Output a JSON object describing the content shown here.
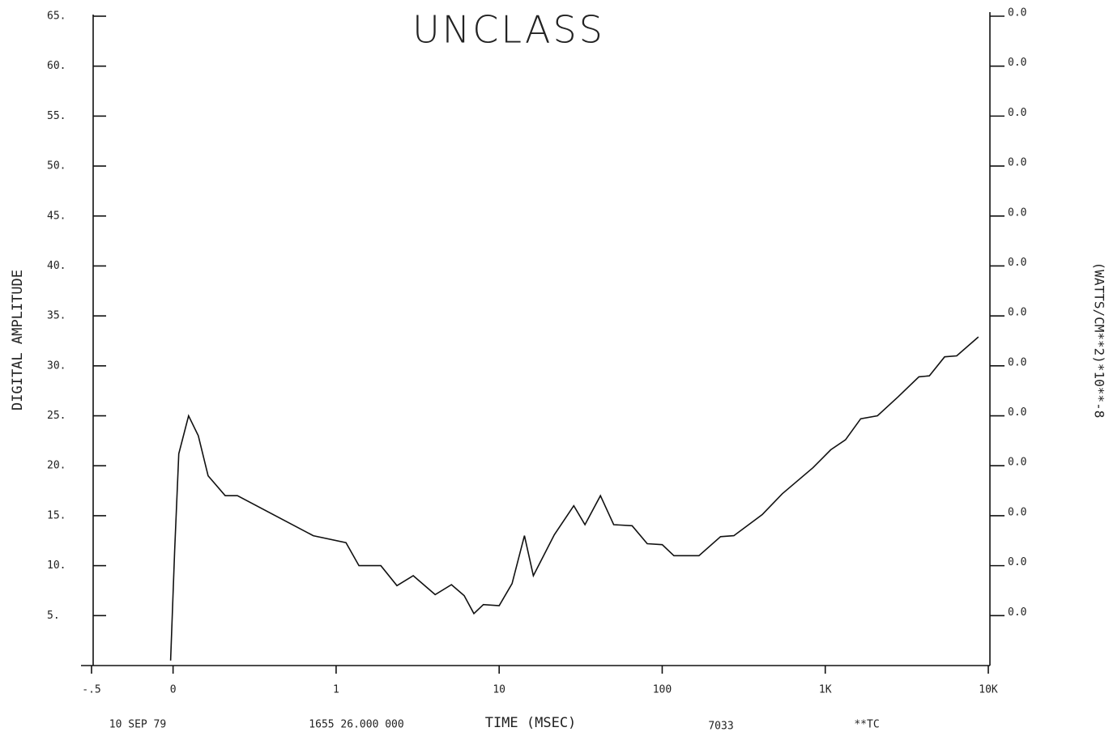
{
  "chart_data": {
    "type": "line",
    "title": "UNCLASS",
    "y_label": "DIGITAL AMPLITUDE",
    "y2_label": "(WATTS/CM**2)*10**-8",
    "x_label": "TIME (MSEC)",
    "footer": [
      "10 SEP 79",
      "1655 26.000 000",
      "7033",
      "**TC"
    ],
    "xscale": "symlog",
    "linthresh": 1,
    "xlim": [
      -0.5,
      10000
    ],
    "xticks": [
      {
        "value": -0.5,
        "label": "-.5"
      },
      0,
      1,
      10,
      100,
      {
        "value": 1000,
        "label": "1K"
      },
      {
        "value": 10000,
        "label": "10K"
      }
    ],
    "ylim": [
      0,
      65
    ],
    "yticks": [
      {
        "value": 5,
        "label": "5."
      },
      {
        "value": 10,
        "label": "10."
      },
      {
        "value": 15,
        "label": "15."
      },
      {
        "value": 20,
        "label": "20."
      },
      {
        "value": 25,
        "label": "25."
      },
      {
        "value": 30,
        "label": "30."
      },
      {
        "value": 35,
        "label": "35."
      },
      {
        "value": 40,
        "label": "40."
      },
      {
        "value": 45,
        "label": "45."
      },
      {
        "value": 50,
        "label": "50."
      },
      {
        "value": 55,
        "label": "55."
      },
      {
        "value": 60,
        "label": "60."
      },
      {
        "value": 65,
        "label": "65."
      }
    ],
    "y2tick_labels": [
      "0.0",
      "0.0",
      "0.0",
      "0.0",
      "0.0",
      "0.0",
      "0.0",
      "0.0",
      "0.0",
      "0.0",
      "0.0",
      "0.0",
      "0.0"
    ],
    "series": [
      {
        "color": "#111",
        "x": [
          -0.015,
          0.01,
          0.035,
          0.095,
          0.155,
          0.215,
          0.32,
          0.395,
          0.86,
          1.15,
          1.38,
          1.88,
          2.36,
          2.97,
          4.05,
          5.1,
          6.1,
          7,
          8,
          10,
          12,
          14.3,
          16.2,
          21.8,
          28.7,
          33.6,
          41.8,
          50.4,
          65.4,
          81,
          100,
          118,
          168,
          228,
          275,
          410,
          545,
          840,
          1080,
          1330,
          1650,
          2090,
          2800,
          3750,
          4350,
          5400,
          6400,
          8700
        ],
        "values": [
          0.5,
          11.5,
          21.2,
          25,
          23,
          19,
          17,
          17,
          13,
          12.3,
          10,
          10,
          8,
          9,
          7.1,
          8.1,
          7,
          5.2,
          6.1,
          6,
          8.2,
          13,
          9,
          13.1,
          16,
          14.1,
          17,
          14.1,
          14,
          12.2,
          12.1,
          11,
          11,
          12.9,
          13,
          15.1,
          17.2,
          19.8,
          21.6,
          22.6,
          24.7,
          25,
          26.9,
          28.9,
          29,
          30.9,
          31,
          32.9
        ]
      }
    ]
  }
}
